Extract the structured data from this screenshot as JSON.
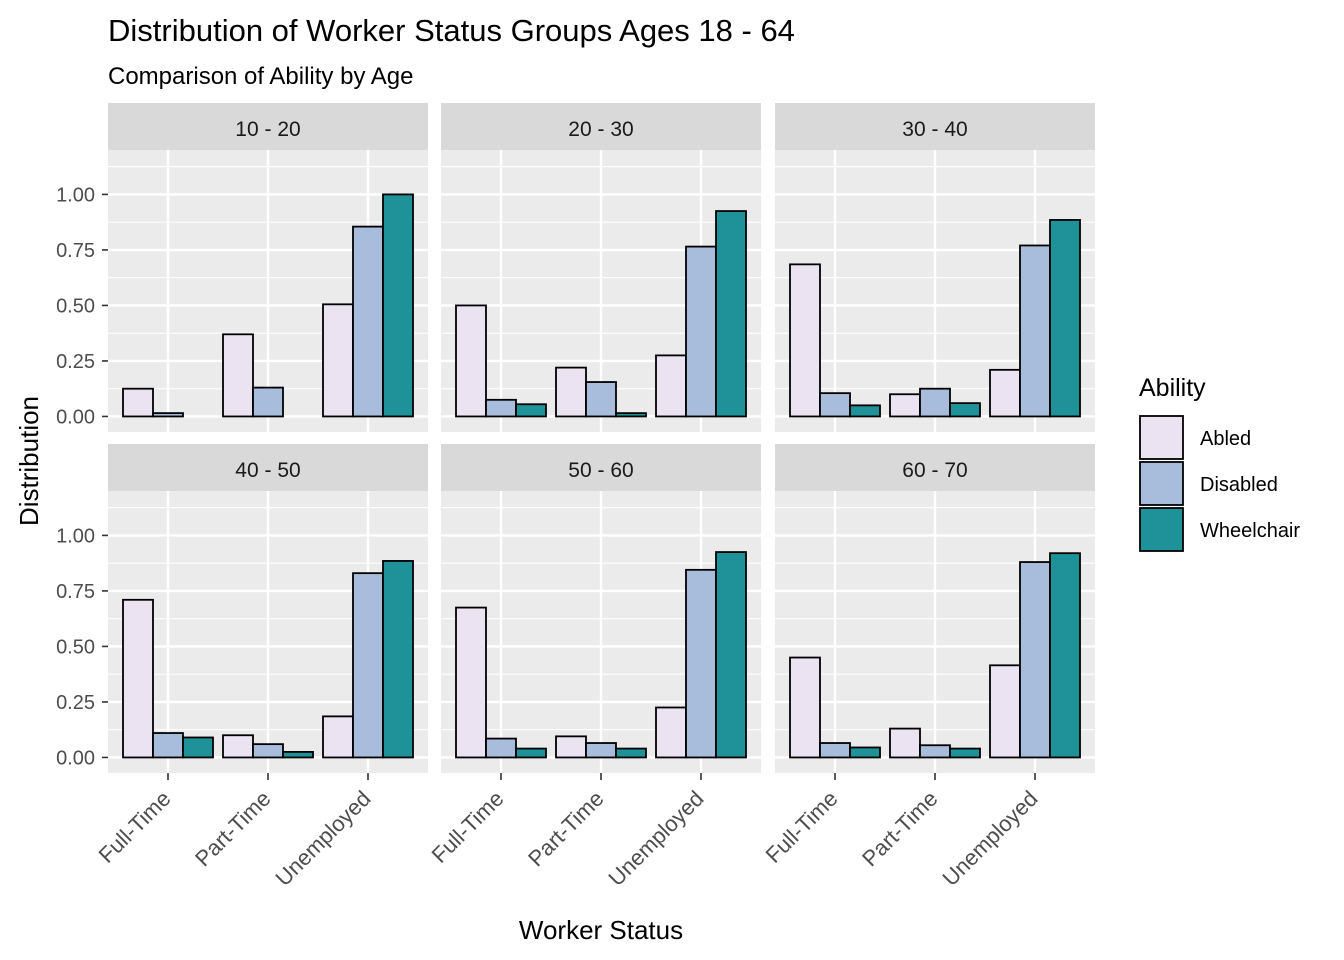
{
  "chart_data": {
    "type": "bar",
    "title": "Distribution of Worker Status Groups Ages 18 - 64",
    "subtitle": "Comparison of Ability by Age",
    "xlabel": "Worker Status",
    "ylabel": "Distribution",
    "ylim": [
      0,
      1.2
    ],
    "yticks": [
      "0.00",
      "0.25",
      "0.50",
      "0.75",
      "1.00"
    ],
    "categories": [
      "Full-Time",
      "Part-Time",
      "Unemployed"
    ],
    "grid": true,
    "legend": {
      "title": "Ability",
      "placement": "right",
      "entries": [
        "Abled",
        "Disabled",
        "Wheelchair"
      ]
    },
    "colors": {
      "Abled": "#ebe3f1",
      "Disabled": "#a8bddc",
      "Wheelchair": "#1e9298"
    },
    "panels": [
      {
        "label": "10 - 20",
        "series": [
          {
            "name": "Abled",
            "values": [
              0.125,
              0.37,
              0.505
            ]
          },
          {
            "name": "Disabled",
            "values": [
              0.015,
              0.13,
              0.855
            ]
          },
          {
            "name": "Wheelchair",
            "values": [
              null,
              null,
              1.0
            ]
          }
        ]
      },
      {
        "label": "20 - 30",
        "series": [
          {
            "name": "Abled",
            "values": [
              0.5,
              0.22,
              0.275
            ]
          },
          {
            "name": "Disabled",
            "values": [
              0.075,
              0.155,
              0.765
            ]
          },
          {
            "name": "Wheelchair",
            "values": [
              0.055,
              0.015,
              0.925
            ]
          }
        ]
      },
      {
        "label": "30 - 40",
        "series": [
          {
            "name": "Abled",
            "values": [
              0.685,
              0.1,
              0.21
            ]
          },
          {
            "name": "Disabled",
            "values": [
              0.105,
              0.125,
              0.77
            ]
          },
          {
            "name": "Wheelchair",
            "values": [
              0.05,
              0.06,
              0.885
            ]
          }
        ]
      },
      {
        "label": "40 - 50",
        "series": [
          {
            "name": "Abled",
            "values": [
              0.71,
              0.1,
              0.185
            ]
          },
          {
            "name": "Disabled",
            "values": [
              0.11,
              0.06,
              0.83
            ]
          },
          {
            "name": "Wheelchair",
            "values": [
              0.09,
              0.025,
              0.885
            ]
          }
        ]
      },
      {
        "label": "50 - 60",
        "series": [
          {
            "name": "Abled",
            "values": [
              0.675,
              0.095,
              0.225
            ]
          },
          {
            "name": "Disabled",
            "values": [
              0.085,
              0.065,
              0.845
            ]
          },
          {
            "name": "Wheelchair",
            "values": [
              0.04,
              0.04,
              0.925
            ]
          }
        ]
      },
      {
        "label": "60 - 70",
        "series": [
          {
            "name": "Abled",
            "values": [
              0.45,
              0.13,
              0.415
            ]
          },
          {
            "name": "Disabled",
            "values": [
              0.065,
              0.055,
              0.88
            ]
          },
          {
            "name": "Wheelchair",
            "values": [
              0.045,
              0.04,
              0.92
            ]
          }
        ]
      }
    ]
  }
}
